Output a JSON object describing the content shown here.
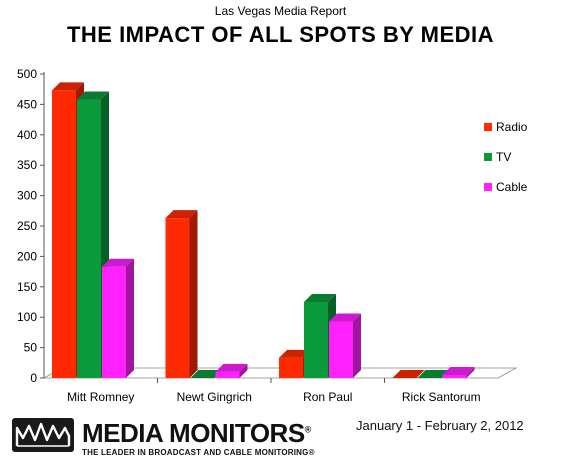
{
  "chart_data": {
    "type": "bar",
    "subtitle": "Las Vegas Media Report",
    "title": "THE IMPACT OF ALL SPOTS BY MEDIA",
    "categories": [
      "Mitt Romney",
      "Newt Gingrich",
      "Ron Paul",
      "Rick Santorum"
    ],
    "series": [
      {
        "name": "Radio",
        "color": "#ff2a00",
        "values": [
          473,
          263,
          33,
          0
        ]
      },
      {
        "name": "TV",
        "color": "#0a9a3c",
        "values": [
          458,
          0,
          125,
          0
        ]
      },
      {
        "name": "Cable",
        "color": "#ff22ff",
        "values": [
          183,
          10,
          93,
          5
        ]
      }
    ],
    "ylim": [
      0,
      500
    ],
    "yticks": [
      0,
      50,
      100,
      150,
      200,
      250,
      300,
      350,
      400,
      450,
      500
    ],
    "grid": false,
    "legend_position": "right",
    "style": "3d-bars"
  },
  "footer": {
    "brand_name": "MEDIA MONITORS",
    "brand_reg": "®",
    "tagline": "THE LEADER IN BROADCAST AND CABLE MONITORING®",
    "date_range": "January 1 - February 2, 2012"
  }
}
